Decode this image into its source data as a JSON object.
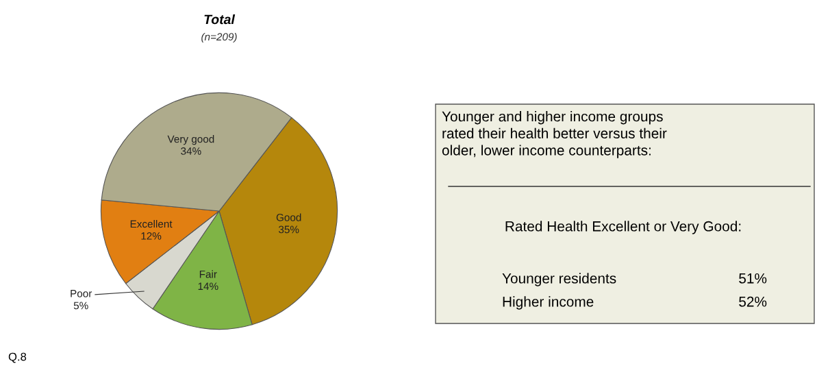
{
  "chart_data": [
    {
      "type": "pie",
      "title": "Total",
      "subtitle": "(n=209)",
      "categories": [
        "Good",
        "Fair",
        "Poor",
        "Excellent",
        "Very good"
      ],
      "values": [
        35,
        14,
        5,
        12,
        34
      ],
      "value_labels": [
        "35%",
        "14%",
        "5%",
        "12%",
        "34%"
      ],
      "colors": [
        "#b5870c",
        "#7fb446",
        "#d8d8cf",
        "#e17f12",
        "#aeab8c"
      ],
      "annotations": [
        "Q.8"
      ]
    },
    {
      "type": "other",
      "title": "Younger and higher income groups\nrated their health better versus their\nolder, lower income counterparts:",
      "subtitle": "Rated Health Excellent or Very Good:",
      "annotations": [
        "Younger residents",
        "51%",
        "Higher income",
        "52%"
      ]
    }
  ]
}
